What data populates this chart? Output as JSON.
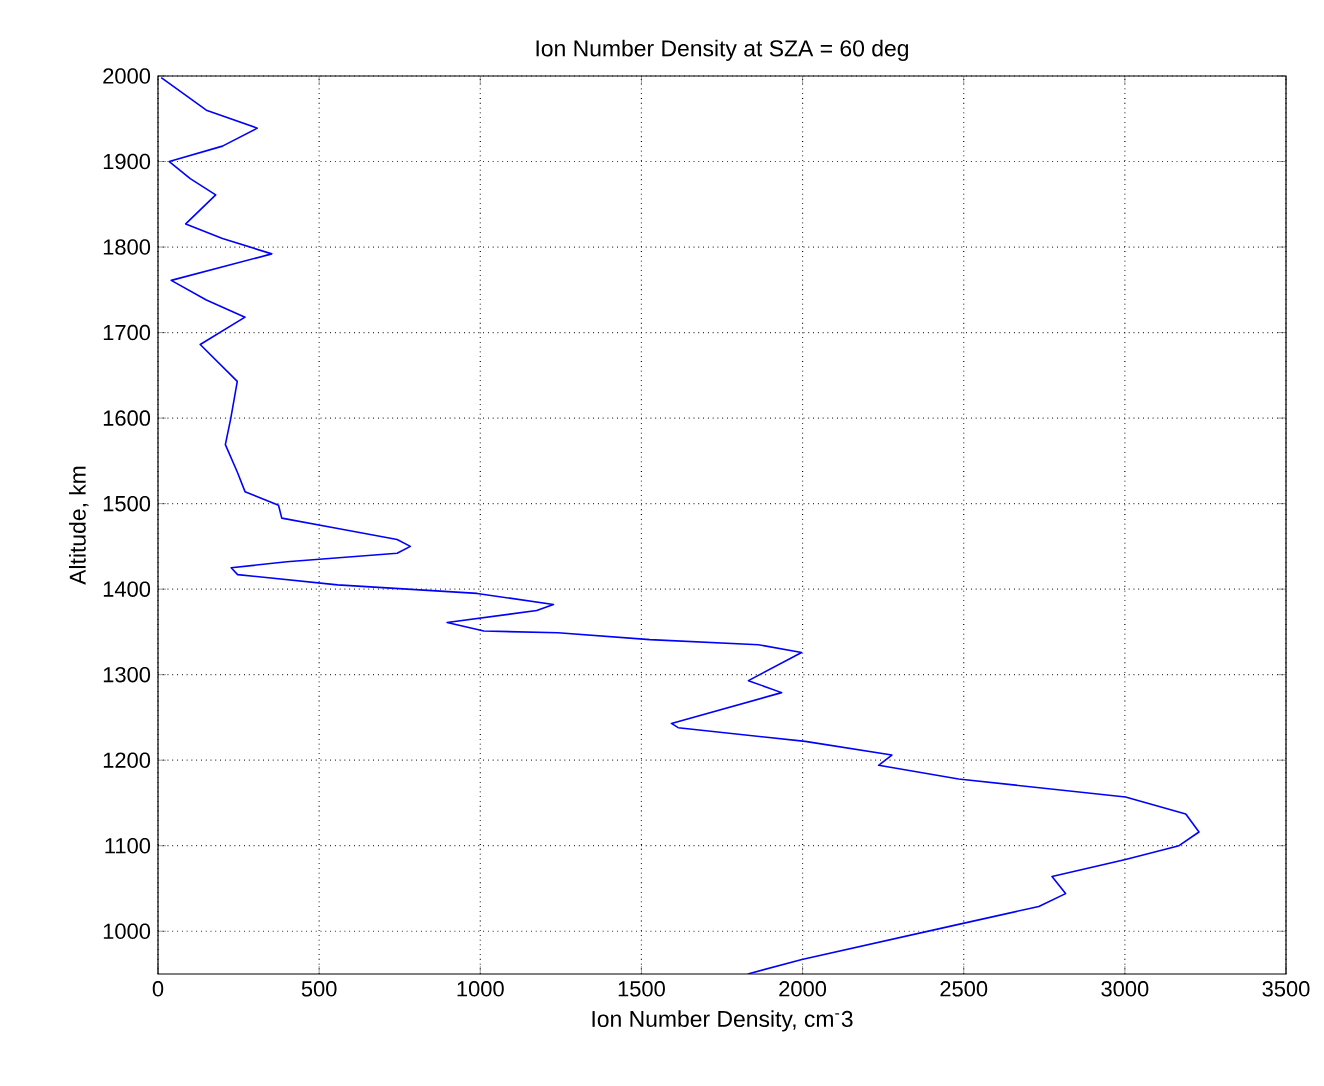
{
  "chart_data": {
    "type": "line",
    "title": "Ion Number Density at SZA = 60 deg",
    "xlabel": "Ion Number Density, cm$^{-}$3",
    "ylabel": "Altitude, km",
    "series": [
      {
        "color": "#0000ff",
        "x": [
          10,
          150,
          308,
          200,
          35,
          100,
          179,
          86,
          200,
          353,
          41,
          150,
          270,
          131,
          246,
          226,
          209,
          246,
          270,
          374,
          384,
          558,
          742,
          783,
          742,
          400,
          227,
          247,
          557,
          990,
          1227,
          1175,
          897,
          1011,
          1241,
          1526,
          1863,
          1997,
          1832,
          1935,
          1593,
          1614,
          2008,
          2277,
          2236,
          2484,
          3002,
          3189,
          3230,
          3168,
          3002,
          2774,
          2816,
          2733,
          2484,
          1998,
          1830
        ],
        "values": [
          1998,
          1960,
          1939,
          1918,
          1900,
          1880,
          1861,
          1827,
          1810,
          1792,
          1761,
          1738,
          1718,
          1686,
          1643,
          1600,
          1569,
          1537,
          1514,
          1498,
          1483,
          1471,
          1458,
          1450,
          1442,
          1432,
          1425,
          1417,
          1405,
          1395,
          1382,
          1375,
          1361,
          1351,
          1349,
          1341,
          1335,
          1326,
          1293,
          1279,
          1243,
          1238,
          1222,
          1206,
          1194,
          1178,
          1157,
          1137,
          1116,
          1100,
          1084,
          1064,
          1044,
          1029,
          1008,
          967,
          950
        ]
      }
    ],
    "xlim": [
      0,
      3500
    ],
    "xticks": [
      0,
      500,
      1000,
      1500,
      2000,
      2500,
      3000,
      3500
    ],
    "ylim": [
      950,
      2000
    ],
    "yticks": [
      1000,
      1100,
      1200,
      1300,
      1400,
      1500,
      1600,
      1700,
      1800,
      1900,
      2000
    ],
    "grid": true,
    "line_style": "solid",
    "marker": "none"
  }
}
